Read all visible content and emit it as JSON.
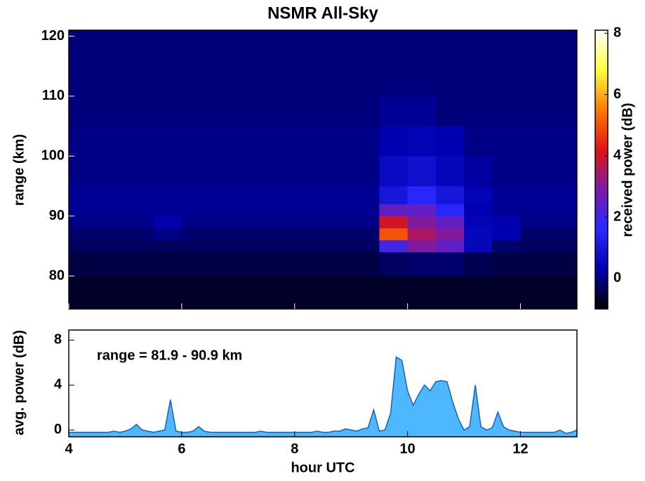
{
  "chart_data": [
    {
      "type": "heatmap",
      "title": "NSMR All-Sky",
      "ylabel": "range (km)",
      "x_bins": [
        4,
        4.5,
        5,
        5.5,
        6,
        6.5,
        7,
        7.5,
        8,
        8.5,
        9,
        9.5,
        10,
        10.5,
        11,
        11.5,
        12,
        12.5,
        13
      ],
      "y_bins": [
        74.5,
        80,
        84,
        86,
        88,
        90,
        92,
        95,
        100,
        105,
        110,
        115,
        121
      ],
      "values": [
        [
          -0.7,
          -0.7,
          -0.7,
          -0.7,
          -0.7,
          -0.7,
          -0.7,
          -0.7,
          -0.7,
          -0.7,
          -0.7,
          -0.7,
          -0.7,
          -0.7,
          -0.7,
          -0.7,
          -0.7,
          -0.7
        ],
        [
          -0.5,
          -0.5,
          -0.5,
          -0.5,
          -0.5,
          -0.5,
          -0.5,
          -0.5,
          -0.5,
          -0.5,
          -0.5,
          -0.3,
          -0.2,
          -0.2,
          -0.4,
          -0.5,
          -0.5,
          -0.5
        ],
        [
          -0.3,
          -0.3,
          -0.3,
          -0.3,
          -0.3,
          -0.3,
          -0.3,
          -0.3,
          -0.3,
          -0.3,
          -0.3,
          2,
          3,
          2.5,
          0.5,
          -0.2,
          -0.3,
          -0.3
        ],
        [
          -0.2,
          -0.2,
          -0.2,
          0,
          -0.2,
          -0.2,
          -0.2,
          -0.2,
          -0.2,
          -0.2,
          -0.2,
          5,
          3.5,
          3,
          0.5,
          0.3,
          -0.2,
          -0.2
        ],
        [
          0,
          0,
          0,
          0.3,
          0,
          0,
          0,
          0,
          0,
          0,
          0,
          4,
          3,
          2.5,
          0.4,
          0.3,
          0,
          0
        ],
        [
          0.1,
          0.1,
          0.1,
          0.1,
          0.1,
          0.1,
          0.1,
          0.1,
          0.1,
          0.1,
          0.1,
          2.5,
          2.5,
          1.5,
          0.3,
          0.1,
          0.1,
          0.1
        ],
        [
          0.1,
          0.1,
          0.1,
          0.1,
          0.1,
          0.1,
          0.1,
          0.1,
          0.1,
          0.1,
          0.1,
          1,
          1.5,
          1,
          0.4,
          0.1,
          0.1,
          0.1
        ],
        [
          0,
          0,
          0,
          0,
          0,
          0,
          0,
          0,
          0,
          0,
          0,
          0.6,
          0.8,
          0.5,
          0.2,
          0,
          0,
          0
        ],
        [
          0,
          0,
          0,
          0,
          0,
          0,
          0,
          0,
          0,
          0,
          0,
          0.3,
          0.4,
          0.3,
          0,
          0,
          0,
          0
        ],
        [
          -0.1,
          -0.1,
          -0.1,
          -0.1,
          -0.1,
          -0.1,
          -0.1,
          -0.1,
          -0.1,
          -0.1,
          -0.1,
          0.1,
          0.1,
          -0.1,
          -0.1,
          -0.1,
          -0.1,
          -0.1
        ],
        [
          -0.1,
          -0.1,
          -0.1,
          -0.1,
          -0.1,
          -0.1,
          -0.1,
          -0.1,
          -0.1,
          -0.1,
          -0.1,
          -0.1,
          -0.1,
          -0.1,
          -0.1,
          -0.1,
          -0.1,
          -0.1
        ],
        [
          -0.1,
          -0.1,
          -0.1,
          -0.1,
          -0.1,
          -0.1,
          -0.1,
          -0.1,
          -0.1,
          -0.1,
          -0.1,
          -0.1,
          -0.1,
          -0.1,
          -0.1,
          -0.1,
          -0.1,
          -0.1
        ]
      ],
      "xlim": [
        4,
        13
      ],
      "ylim": [
        74.5,
        121
      ],
      "yticks": [
        80,
        90,
        100,
        110,
        120
      ],
      "colorbar": {
        "label": "received power (dB)",
        "zlim": [
          -1,
          8.1
        ],
        "ticks": [
          0,
          2,
          4,
          6,
          8
        ],
        "colormap": [
          "#000000",
          "#0000b0",
          "#2a2aff",
          "#7a1aa8",
          "#e01414",
          "#ff7a00",
          "#ffff40",
          "#ffffff"
        ]
      }
    },
    {
      "type": "area",
      "xlabel": "hour UTC",
      "ylabel": "avg. power (dB)",
      "annotation": "range = 81.9 - 90.9 km",
      "color": "#4db8ff",
      "line_color": "#1f5fb4",
      "x": [
        4,
        4.1,
        4.2,
        4.3,
        4.4,
        4.5,
        4.6,
        4.7,
        4.8,
        4.9,
        5,
        5.1,
        5.2,
        5.3,
        5.4,
        5.5,
        5.6,
        5.7,
        5.8,
        5.9,
        6,
        6.1,
        6.2,
        6.3,
        6.4,
        6.5,
        6.6,
        6.7,
        6.8,
        6.9,
        7,
        7.1,
        7.2,
        7.3,
        7.4,
        7.5,
        7.6,
        7.7,
        7.8,
        7.9,
        8,
        8.1,
        8.2,
        8.3,
        8.4,
        8.5,
        8.6,
        8.7,
        8.8,
        8.9,
        9,
        9.1,
        9.2,
        9.3,
        9.4,
        9.5,
        9.6,
        9.7,
        9.8,
        9.9,
        10,
        10.1,
        10.2,
        10.3,
        10.4,
        10.5,
        10.6,
        10.7,
        10.8,
        10.9,
        11,
        11.1,
        11.2,
        11.3,
        11.4,
        11.5,
        11.6,
        11.7,
        11.8,
        11.9,
        12,
        12.1,
        12.2,
        12.3,
        12.4,
        12.5,
        12.6,
        12.7,
        12.8,
        12.9,
        13
      ],
      "values": [
        -0.2,
        -0.2,
        -0.2,
        -0.2,
        -0.2,
        -0.2,
        -0.2,
        -0.2,
        -0.1,
        -0.2,
        -0.1,
        0.1,
        0.5,
        0,
        -0.1,
        -0.2,
        -0.1,
        0,
        2.7,
        -0.1,
        -0.2,
        -0.2,
        -0.1,
        0.3,
        -0.1,
        -0.2,
        -0.2,
        -0.2,
        -0.2,
        -0.2,
        -0.2,
        -0.2,
        -0.2,
        -0.2,
        -0.1,
        -0.2,
        -0.2,
        -0.2,
        -0.2,
        -0.2,
        -0.2,
        -0.2,
        -0.2,
        -0.2,
        -0.1,
        -0.2,
        -0.2,
        -0.1,
        -0.1,
        0.1,
        0,
        -0.1,
        0.1,
        0.2,
        1.8,
        -0.1,
        0,
        1.5,
        6.5,
        6.2,
        3.5,
        2.2,
        3.2,
        4,
        3.5,
        4.3,
        4.4,
        4.3,
        2.5,
        1,
        0,
        0.3,
        4,
        0.3,
        0,
        0.2,
        1.6,
        0.3,
        0,
        -0.1,
        -0.2,
        -0.2,
        -0.2,
        -0.2,
        -0.2,
        -0.2,
        -0.2,
        0,
        -0.3,
        -0.2,
        0
      ],
      "xlim": [
        4,
        13
      ],
      "xticks": [
        4,
        6,
        8,
        10,
        12
      ],
      "ylim": [
        -0.6,
        8.9
      ],
      "yticks": [
        0,
        4,
        8
      ]
    }
  ]
}
